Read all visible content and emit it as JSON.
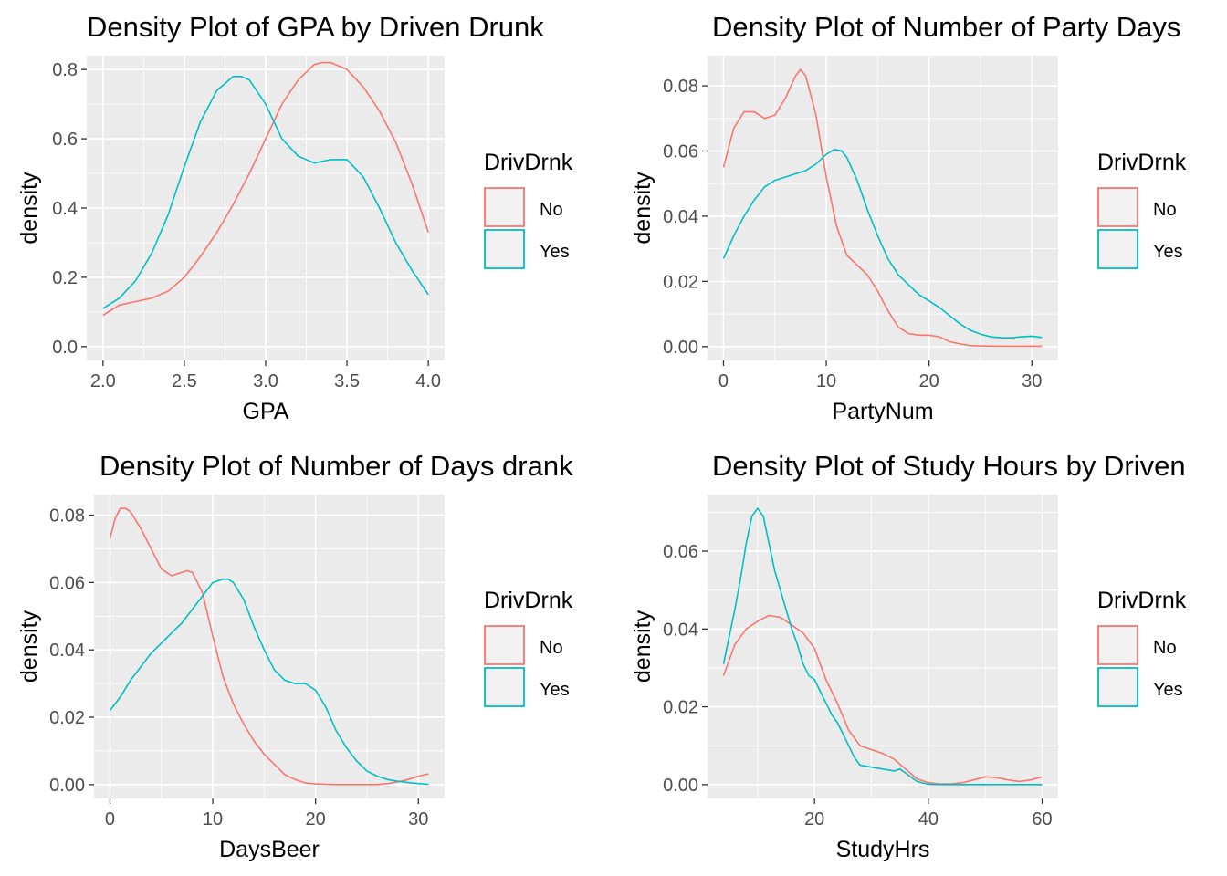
{
  "colors": {
    "No": "#F8766D",
    "Yes": "#00BFC4"
  },
  "chart_data": [
    {
      "type": "line",
      "title": "Density Plot of GPA by Driven Drunk",
      "xlabel": "GPA",
      "ylabel": "density",
      "xlim": [
        2.0,
        4.0
      ],
      "ylim": [
        0.0,
        0.8
      ],
      "xticks": [
        2.0,
        2.5,
        3.0,
        3.5,
        4.0
      ],
      "xtick_labels": [
        "2.0",
        "2.5",
        "3.0",
        "3.5",
        "4.0"
      ],
      "yticks": [
        0.0,
        0.2,
        0.4,
        0.6,
        0.8
      ],
      "ytick_labels": [
        "0.0",
        "0.2",
        "0.4",
        "0.6",
        "0.8"
      ],
      "legend": {
        "title": "DrivDrnk",
        "entries": [
          "No",
          "Yes"
        ],
        "position": "right"
      },
      "series": [
        {
          "name": "No",
          "x": [
            2.0,
            2.1,
            2.2,
            2.3,
            2.4,
            2.5,
            2.6,
            2.7,
            2.8,
            2.9,
            3.0,
            3.1,
            3.2,
            3.3,
            3.35,
            3.4,
            3.5,
            3.6,
            3.7,
            3.8,
            3.9,
            4.0
          ],
          "y": [
            0.09,
            0.12,
            0.13,
            0.14,
            0.16,
            0.2,
            0.26,
            0.33,
            0.41,
            0.5,
            0.6,
            0.7,
            0.77,
            0.815,
            0.82,
            0.82,
            0.8,
            0.75,
            0.68,
            0.59,
            0.47,
            0.33
          ]
        },
        {
          "name": "Yes",
          "x": [
            2.0,
            2.1,
            2.2,
            2.3,
            2.4,
            2.5,
            2.6,
            2.7,
            2.8,
            2.85,
            2.9,
            3.0,
            3.1,
            3.2,
            3.3,
            3.4,
            3.5,
            3.6,
            3.7,
            3.8,
            3.9,
            4.0
          ],
          "y": [
            0.11,
            0.14,
            0.19,
            0.27,
            0.38,
            0.52,
            0.65,
            0.74,
            0.78,
            0.78,
            0.77,
            0.7,
            0.6,
            0.55,
            0.53,
            0.54,
            0.54,
            0.49,
            0.4,
            0.3,
            0.22,
            0.15
          ]
        }
      ]
    },
    {
      "type": "line",
      "title": "Density Plot of Number of Party Days",
      "xlabel": "PartyNum",
      "ylabel": "density",
      "xlim": [
        0,
        31
      ],
      "ylim": [
        0.0,
        0.085
      ],
      "xticks": [
        0,
        10,
        20,
        30
      ],
      "xtick_labels": [
        "0",
        "10",
        "20",
        "30"
      ],
      "yticks": [
        0.0,
        0.02,
        0.04,
        0.06,
        0.08
      ],
      "ytick_labels": [
        "0.00",
        "0.02",
        "0.04",
        "0.06",
        "0.08"
      ],
      "legend": {
        "title": "DrivDrnk",
        "entries": [
          "No",
          "Yes"
        ],
        "position": "right"
      },
      "series": [
        {
          "name": "No",
          "x": [
            0,
            1,
            2,
            3,
            4,
            5,
            6,
            7,
            7.5,
            8,
            9,
            10,
            11,
            12,
            13,
            14,
            15,
            16,
            17,
            18,
            19,
            20,
            21,
            22,
            23,
            24,
            25,
            27,
            29,
            31
          ],
          "y": [
            0.055,
            0.067,
            0.072,
            0.072,
            0.07,
            0.071,
            0.076,
            0.083,
            0.085,
            0.083,
            0.071,
            0.052,
            0.037,
            0.028,
            0.025,
            0.022,
            0.017,
            0.011,
            0.006,
            0.004,
            0.0035,
            0.0035,
            0.003,
            0.0015,
            0.0008,
            0.0003,
            0.0002,
            0.0001,
            0.0001,
            0.0001
          ]
        },
        {
          "name": "Yes",
          "x": [
            0,
            1,
            2,
            3,
            4,
            5,
            6,
            7,
            8,
            9,
            10,
            10.8,
            11.5,
            12,
            13,
            14,
            15,
            16,
            17,
            18,
            19,
            20,
            21,
            22,
            23,
            24,
            25,
            26,
            27,
            28,
            29,
            30,
            31
          ],
          "y": [
            0.027,
            0.034,
            0.04,
            0.045,
            0.049,
            0.051,
            0.052,
            0.053,
            0.054,
            0.056,
            0.059,
            0.0605,
            0.06,
            0.058,
            0.051,
            0.042,
            0.034,
            0.027,
            0.022,
            0.019,
            0.016,
            0.014,
            0.012,
            0.0095,
            0.007,
            0.005,
            0.0038,
            0.003,
            0.0027,
            0.0027,
            0.003,
            0.0032,
            0.0028
          ]
        }
      ]
    },
    {
      "type": "line",
      "title": "Density Plot of Number of Days drank",
      "xlabel": "DaysBeer",
      "ylabel": "density",
      "xlim": [
        0,
        31
      ],
      "ylim": [
        0.0,
        0.082
      ],
      "xticks": [
        0,
        10,
        20,
        30
      ],
      "xtick_labels": [
        "0",
        "10",
        "20",
        "30"
      ],
      "yticks": [
        0.0,
        0.02,
        0.04,
        0.06,
        0.08
      ],
      "ytick_labels": [
        "0.00",
        "0.02",
        "0.04",
        "0.06",
        "0.08"
      ],
      "legend": {
        "title": "DrivDrnk",
        "entries": [
          "No",
          "Yes"
        ],
        "position": "right"
      },
      "series": [
        {
          "name": "No",
          "x": [
            0,
            0.5,
            1,
            1.5,
            2,
            3,
            4,
            5,
            6,
            7,
            7.5,
            8,
            9,
            10,
            11,
            12,
            13,
            14,
            15,
            16,
            17,
            18,
            19,
            20,
            21,
            22,
            23,
            24,
            25,
            26,
            27,
            28,
            29,
            30,
            31
          ],
          "y": [
            0.073,
            0.079,
            0.082,
            0.082,
            0.081,
            0.076,
            0.07,
            0.064,
            0.062,
            0.063,
            0.0635,
            0.063,
            0.057,
            0.044,
            0.032,
            0.024,
            0.018,
            0.013,
            0.009,
            0.006,
            0.003,
            0.0015,
            0.0005,
            0.0002,
            0.0001,
            0.0,
            0.0,
            0.0,
            0.0,
            0.0,
            0.0003,
            0.0008,
            0.0015,
            0.0025,
            0.0032
          ]
        },
        {
          "name": "Yes",
          "x": [
            0,
            1,
            2,
            3,
            4,
            5,
            6,
            7,
            8,
            9,
            10,
            11,
            11.5,
            12,
            13,
            14,
            15,
            16,
            17,
            18,
            19,
            20,
            21,
            22,
            23,
            24,
            25,
            26,
            27,
            28,
            29,
            30,
            31
          ],
          "y": [
            0.022,
            0.026,
            0.031,
            0.035,
            0.039,
            0.042,
            0.045,
            0.048,
            0.052,
            0.056,
            0.06,
            0.061,
            0.061,
            0.06,
            0.055,
            0.047,
            0.04,
            0.034,
            0.031,
            0.03,
            0.03,
            0.028,
            0.023,
            0.016,
            0.011,
            0.007,
            0.004,
            0.0025,
            0.0015,
            0.001,
            0.0006,
            0.0003,
            0.0001
          ]
        }
      ]
    },
    {
      "type": "line",
      "title": "Density Plot of Study Hours by Driven",
      "xlabel": "StudyHrs",
      "ylabel": "density",
      "xlim": [
        4,
        60
      ],
      "ylim": [
        0.0,
        0.071
      ],
      "xticks": [
        20,
        40,
        60
      ],
      "xtick_labels": [
        "20",
        "40",
        "60"
      ],
      "yticks": [
        0.0,
        0.02,
        0.04,
        0.06
      ],
      "ytick_labels": [
        "0.00",
        "0.02",
        "0.04",
        "0.06"
      ],
      "legend": {
        "title": "DrivDrnk",
        "entries": [
          "No",
          "Yes"
        ],
        "position": "right"
      },
      "series": [
        {
          "name": "No",
          "x": [
            4,
            6,
            8,
            10,
            12,
            14,
            16,
            18,
            20,
            22,
            24,
            26,
            28,
            30,
            32,
            34,
            36,
            38,
            40,
            42,
            44,
            46,
            48,
            50,
            52,
            54,
            56,
            58,
            60
          ],
          "y": [
            0.028,
            0.036,
            0.04,
            0.042,
            0.0435,
            0.043,
            0.041,
            0.039,
            0.035,
            0.027,
            0.021,
            0.014,
            0.01,
            0.009,
            0.008,
            0.0065,
            0.004,
            0.0015,
            0.0005,
            0.0002,
            0.0002,
            0.0005,
            0.0012,
            0.002,
            0.0018,
            0.0012,
            0.0008,
            0.0012,
            0.002
          ]
        },
        {
          "name": "Yes",
          "x": [
            4,
            5,
            6,
            7,
            8,
            9,
            10,
            11,
            12,
            13,
            14,
            15,
            16,
            17,
            18,
            19,
            20,
            21,
            22,
            23,
            24,
            25,
            26,
            27,
            28,
            30,
            32,
            34,
            35,
            36,
            38,
            40,
            42,
            44,
            46,
            50,
            55,
            60
          ],
          "y": [
            0.031,
            0.038,
            0.045,
            0.053,
            0.062,
            0.069,
            0.071,
            0.069,
            0.062,
            0.055,
            0.05,
            0.045,
            0.04,
            0.036,
            0.031,
            0.028,
            0.027,
            0.024,
            0.021,
            0.018,
            0.016,
            0.013,
            0.01,
            0.007,
            0.005,
            0.0045,
            0.004,
            0.0035,
            0.004,
            0.003,
            0.0008,
            0.0001,
            0.0,
            0.0,
            0.0,
            0.0,
            0.0,
            0.0
          ]
        }
      ]
    }
  ]
}
